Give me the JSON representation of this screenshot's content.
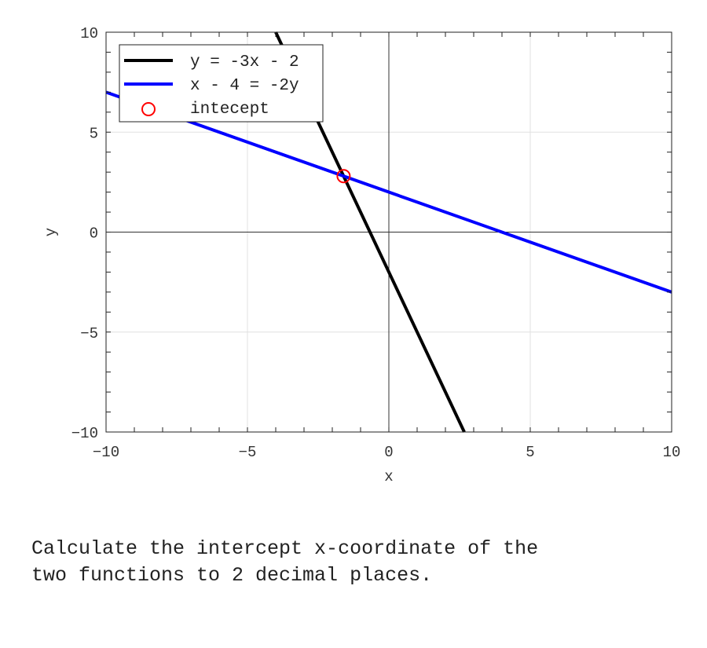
{
  "chart_data": {
    "type": "line",
    "title": "",
    "xlabel": "x",
    "ylabel": "y",
    "xlim": [
      -10,
      10
    ],
    "ylim": [
      -10,
      10
    ],
    "xticks": [
      -10,
      -5,
      0,
      5,
      10
    ],
    "yticks": [
      -10,
      -5,
      0,
      5,
      10
    ],
    "xtick_labels": [
      "−10",
      "−5",
      "0",
      "5",
      "10"
    ],
    "ytick_labels": [
      "−10",
      "−5",
      "0",
      "5",
      "10"
    ],
    "grid": true,
    "legend_position": "top-left",
    "series": [
      {
        "name": "y = -3x - 2",
        "color": "#000000",
        "slope": -3,
        "intercept": -2,
        "x": [
          -4,
          2.667
        ],
        "y": [
          10,
          -10
        ]
      },
      {
        "name": "x - 4 = -2y",
        "color": "#0000ff",
        "slope": -0.5,
        "intercept": 2,
        "x": [
          -10,
          10
        ],
        "y": [
          7,
          -3
        ]
      },
      {
        "name": "intecept",
        "color": "#ff0000",
        "type": "scatter",
        "marker": "open-circle",
        "x": [
          -1.6
        ],
        "y": [
          2.8
        ]
      }
    ]
  },
  "question": "Calculate the intercept x-coordinate of the\ntwo functions to 2 decimal places."
}
